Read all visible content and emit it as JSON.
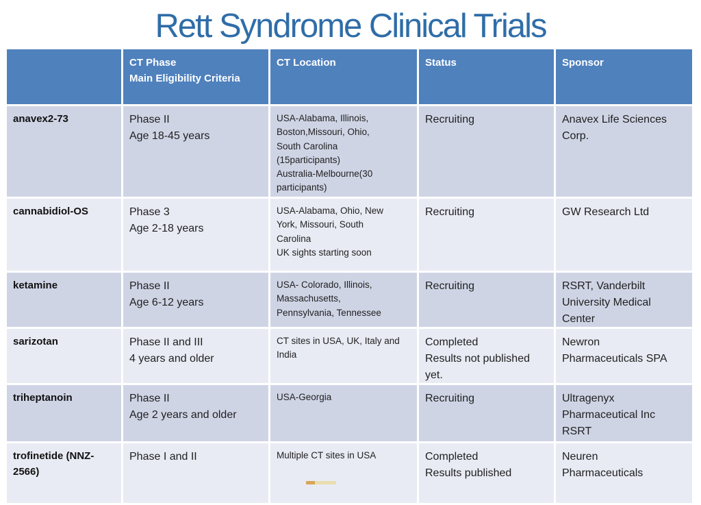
{
  "title": "Rett Syndrome Clinical Trials",
  "colors": {
    "title_color": "#2f6da8",
    "header_bg": "#4f81bd",
    "header_text": "#ffffff",
    "band_dark": "#cfd4e5",
    "band_light": "#e9ebf4",
    "body_text": "#1f1f1f",
    "artifact_color": "#d49a3a"
  },
  "table": {
    "columns": [
      {
        "label": ""
      },
      {
        "label": "CT Phase\nMain Eligibility Criteria"
      },
      {
        "label": "CT Location"
      },
      {
        "label": "Status"
      },
      {
        "label": "Sponsor"
      }
    ],
    "rows": [
      {
        "drug": "anavex2-73",
        "phase": "Phase II\nAge 18-45 years",
        "location": "USA-Alabama, Illinois,\nBoston,Missouri, Ohio,\nSouth Carolina\n(15participants)\nAustralia-Melbourne(30\nparticipants)",
        "status": "Recruiting",
        "sponsor": "Anavex Life Sciences\nCorp."
      },
      {
        "drug": "cannabidiol-OS",
        "phase": "Phase 3\nAge 2-18 years",
        "location": "USA-Alabama, Ohio, New\nYork, Missouri, South\nCarolina\nUK sights starting soon",
        "status": "Recruiting",
        "sponsor": "GW Research Ltd"
      },
      {
        "drug": "ketamine",
        "phase": "Phase II\nAge 6-12 years",
        "location": "USA- Colorado, Illinois,\nMassachusetts,\nPennsylvania, Tennessee",
        "status": "Recruiting",
        "sponsor": "RSRT, Vanderbilt\nUniversity Medical\nCenter"
      },
      {
        "drug": "sarizotan",
        "phase": "Phase II and III\n4 years and older",
        "location": "CT sites in USA, UK, Italy and\nIndia",
        "status": "Completed\nResults not published\nyet.",
        "sponsor": "Newron\nPharmaceuticals SPA"
      },
      {
        "drug": "triheptanoin",
        "phase": "Phase II\nAge 2 years and older",
        "location": "USA-Georgia",
        "status": "Recruiting",
        "sponsor": "Ultragenyx\nPharmaceutical Inc\nRSRT"
      },
      {
        "drug": "trofinetide (NNZ-2566)",
        "phase": "Phase I and II",
        "location": "Multiple CT sites in USA",
        "status": "Completed\nResults published",
        "sponsor": "Neuren\nPharmaceuticals"
      }
    ]
  }
}
